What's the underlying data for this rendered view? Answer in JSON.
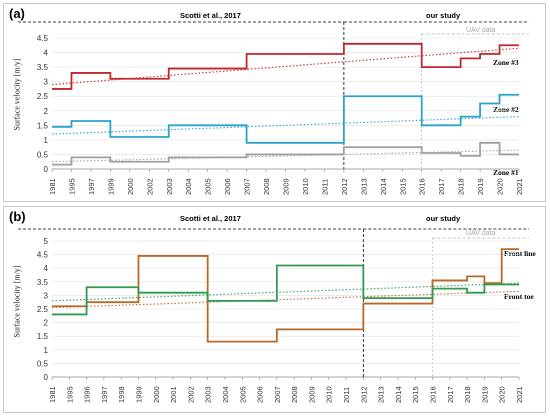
{
  "chart_data": [
    {
      "panel_label": "(a)",
      "type": "line",
      "step": true,
      "ylabel": "Surface velocity [m/y]",
      "ylim": [
        0,
        4.5
      ],
      "yticks": [
        0,
        0.5,
        1,
        1.5,
        2,
        2.5,
        3,
        3.5,
        4,
        4.5
      ],
      "categories": [
        "1981",
        "1995",
        "1997",
        "1999",
        "2000",
        "2002",
        "2003",
        "2004",
        "2005",
        "2006",
        "2007",
        "2008",
        "2009",
        "2010",
        "2011",
        "2012",
        "2013",
        "2014",
        "2015",
        "2016",
        "2017",
        "2018",
        "2019",
        "2020",
        "2021"
      ],
      "grid": true,
      "reference_left": "Scotti et al., 2017",
      "reference_right": "our study",
      "uav_label": "UAV data",
      "divider_at": "2012",
      "series": [
        {
          "name": "Zone #3",
          "color": "#c0282d",
          "segments": [
            [
              "1981",
              "1995",
              2.75
            ],
            [
              "1995",
              "1999",
              3.3
            ],
            [
              "1999",
              "2003",
              3.1
            ],
            [
              "2003",
              "2007",
              3.45
            ],
            [
              "2007",
              "2012",
              3.95
            ],
            [
              "2012",
              "2016",
              4.3
            ],
            [
              "2016",
              "2017",
              3.5
            ],
            [
              "2017",
              "2018",
              3.5
            ],
            [
              "2018",
              "2019",
              3.8
            ],
            [
              "2019",
              "2020",
              3.95
            ],
            [
              "2020",
              "2021",
              4.25
            ]
          ],
          "trend": [
            2.9,
            4.15
          ]
        },
        {
          "name": "Zone #2",
          "color": "#2aa3c9",
          "segments": [
            [
              "1981",
              "1995",
              1.45
            ],
            [
              "1995",
              "1999",
              1.65
            ],
            [
              "1999",
              "2003",
              1.1
            ],
            [
              "2003",
              "2007",
              1.5
            ],
            [
              "2007",
              "2012",
              0.9
            ],
            [
              "2012",
              "2016",
              2.5
            ],
            [
              "2016",
              "2018",
              1.5
            ],
            [
              "2018",
              "2019",
              1.8
            ],
            [
              "2019",
              "2020",
              2.25
            ],
            [
              "2020",
              "2021",
              2.55
            ]
          ],
          "trend": [
            1.2,
            1.8
          ]
        },
        {
          "name": "Zone #1",
          "color": "#a0a0a0",
          "segments": [
            [
              "1981",
              "1995",
              0.15
            ],
            [
              "1995",
              "1999",
              0.4
            ],
            [
              "1999",
              "2003",
              0.25
            ],
            [
              "2003",
              "2007",
              0.4
            ],
            [
              "2007",
              "2012",
              0.5
            ],
            [
              "2012",
              "2016",
              0.75
            ],
            [
              "2016",
              "2018",
              0.55
            ],
            [
              "2018",
              "2019",
              0.45
            ],
            [
              "2019",
              "2020",
              0.9
            ],
            [
              "2020",
              "2021",
              0.5
            ]
          ],
          "trend": [
            0.25,
            0.65
          ]
        }
      ]
    },
    {
      "panel_label": "(b)",
      "type": "line",
      "step": true,
      "ylabel": "Surface velocity [m/y]",
      "ylim": [
        0,
        5
      ],
      "yticks": [
        0,
        0.5,
        1,
        1.5,
        2,
        2.5,
        3,
        3.5,
        4,
        4.5,
        5
      ],
      "categories": [
        "1981",
        "1995",
        "1996",
        "1997",
        "1998",
        "1999",
        "2000",
        "2001",
        "2002",
        "2003",
        "2004",
        "2005",
        "2006",
        "2007",
        "2008",
        "2009",
        "2010",
        "2011",
        "2012",
        "2013",
        "2014",
        "2015",
        "2016",
        "2017",
        "2018",
        "2019",
        "2020",
        "2021"
      ],
      "grid": true,
      "reference_left": "Scotti et al., 2017",
      "reference_right": "our study",
      "uav_label": "UAV data",
      "divider_at": "2012",
      "series": [
        {
          "name": "Front line",
          "color": "#b8692a",
          "segments": [
            [
              "1981",
              "1996",
              2.6
            ],
            [
              "1996",
              "1999",
              2.75
            ],
            [
              "1999",
              "2003",
              4.45
            ],
            [
              "2003",
              "2007",
              1.3
            ],
            [
              "2007",
              "2012",
              1.75
            ],
            [
              "2012",
              "2016",
              2.7
            ],
            [
              "2016",
              "2018",
              3.55
            ],
            [
              "2018",
              "2019",
              3.7
            ],
            [
              "2019",
              "2020",
              3.45
            ],
            [
              "2020",
              "2021",
              4.7
            ]
          ],
          "trend": [
            2.55,
            3.15
          ]
        },
        {
          "name": "Front toe",
          "color": "#2e9a52",
          "segments": [
            [
              "1981",
              "1996",
              2.3
            ],
            [
              "1996",
              "1999",
              3.3
            ],
            [
              "1999",
              "2003",
              3.1
            ],
            [
              "2003",
              "2007",
              2.8
            ],
            [
              "2007",
              "2012",
              4.1
            ],
            [
              "2012",
              "2016",
              2.9
            ],
            [
              "2016",
              "2018",
              3.25
            ],
            [
              "2018",
              "2019",
              3.1
            ],
            [
              "2019",
              "2020",
              3.4
            ],
            [
              "2020",
              "2021",
              3.4
            ]
          ],
          "trend": [
            2.8,
            3.45
          ]
        }
      ]
    }
  ]
}
